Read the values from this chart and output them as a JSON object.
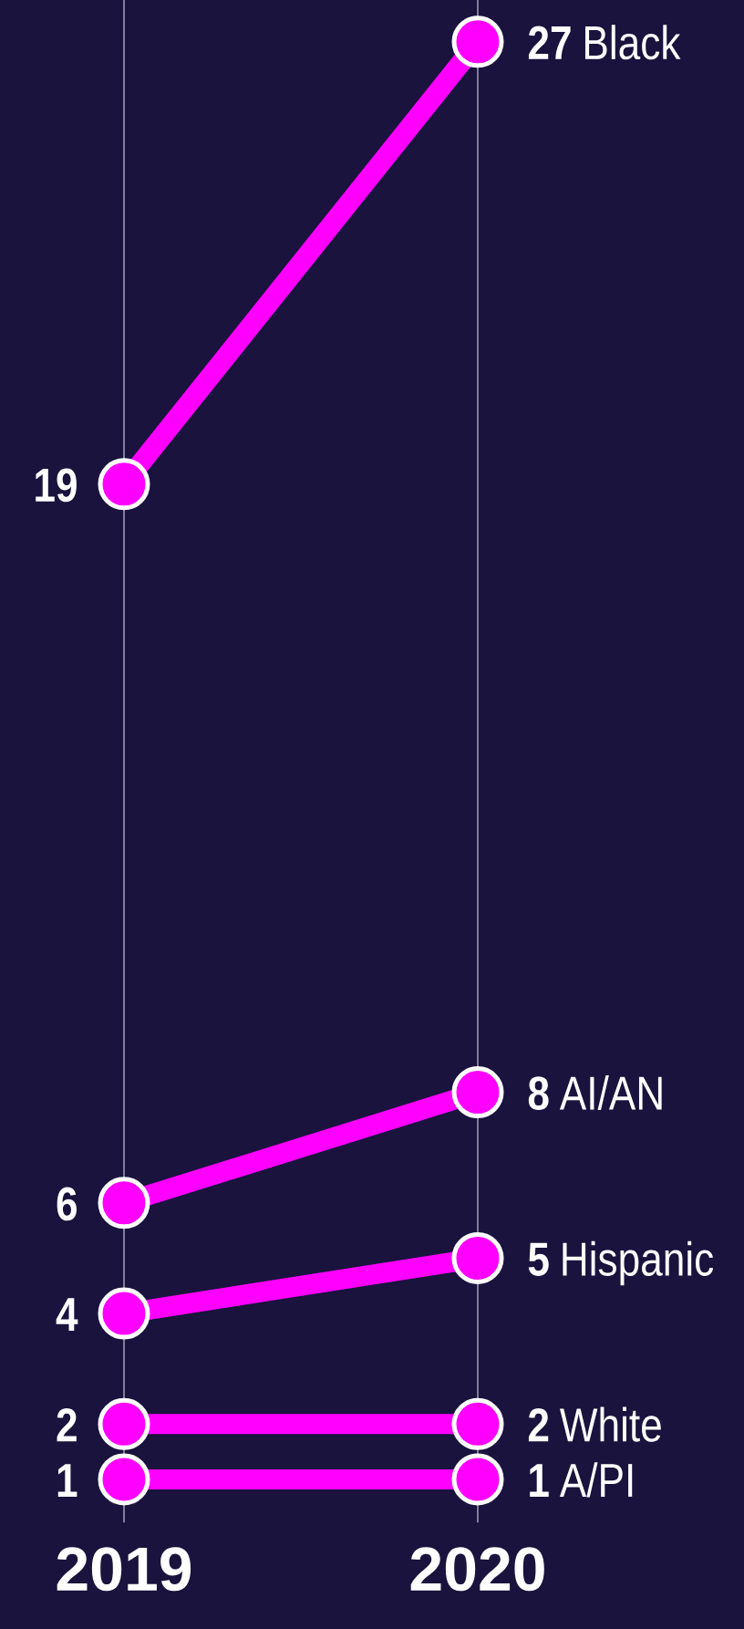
{
  "chart_data": {
    "type": "line",
    "categories": [
      "2019",
      "2020"
    ],
    "grid": "x",
    "tick_labels": "x",
    "marker": "circle",
    "data_labels": true,
    "legend": "right",
    "series": [
      {
        "name": "Black",
        "color": "#ff00ff",
        "values": [
          19,
          27
        ]
      },
      {
        "name": "AI/AN",
        "color": "#ff00ff",
        "values": [
          6,
          8
        ]
      },
      {
        "name": "Hispanic",
        "color": "#ff00ff",
        "values": [
          4,
          5
        ]
      },
      {
        "name": "White",
        "color": "#ff00ff",
        "values": [
          2,
          2
        ]
      },
      {
        "name": "A/PI",
        "color": "#ff00ff",
        "values": [
          1,
          1
        ]
      }
    ]
  }
}
